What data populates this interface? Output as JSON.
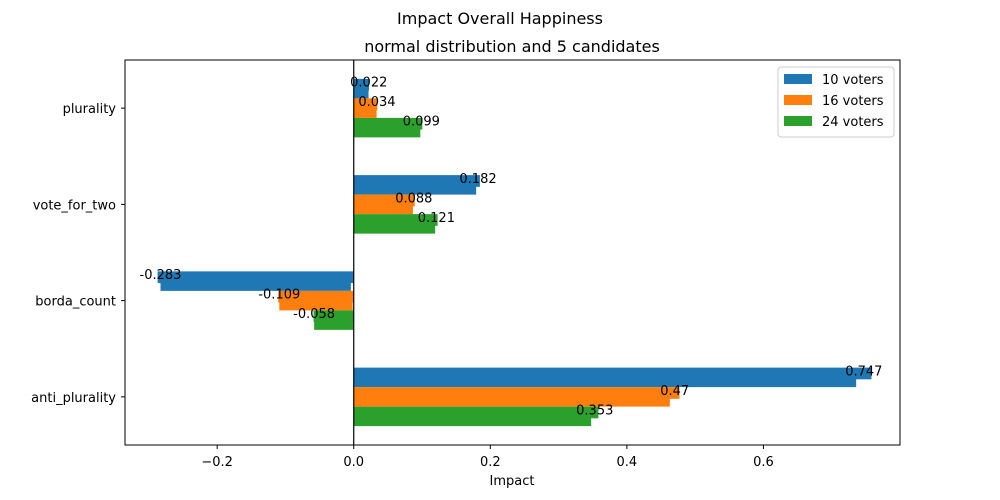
{
  "chart_data": {
    "type": "bar",
    "orientation": "horizontal",
    "suptitle": "Impact Overall Happiness",
    "title": "normal distribution and 5 candidates",
    "xlabel": "Impact",
    "ylabel": "",
    "categories": [
      "plurality",
      "vote_for_two",
      "borda_count",
      "anti_plurality"
    ],
    "xlim": [
      -0.335,
      0.8
    ],
    "xticks": [
      -0.2,
      0.0,
      0.2,
      0.4,
      0.6
    ],
    "xtick_labels": [
      "−0.2",
      "0.0",
      "0.2",
      "0.4",
      "0.6"
    ],
    "grid": false,
    "legend_position": "top-right",
    "series": [
      {
        "name": "10 voters",
        "color": "#1f77b4",
        "values": [
          0.022,
          0.182,
          -0.283,
          0.747
        ],
        "labels": [
          "0.022",
          "0.182",
          "-0.283",
          "0.747"
        ]
      },
      {
        "name": "16 voters",
        "color": "#ff7f0e",
        "values": [
          0.034,
          0.088,
          -0.109,
          0.47
        ],
        "labels": [
          "0.034",
          "0.088",
          "-0.109",
          "0.47"
        ]
      },
      {
        "name": "24 voters",
        "color": "#2ca02c",
        "values": [
          0.099,
          0.121,
          -0.058,
          0.353
        ],
        "labels": [
          "0.099",
          "0.121",
          "-0.058",
          "0.353"
        ]
      }
    ]
  }
}
